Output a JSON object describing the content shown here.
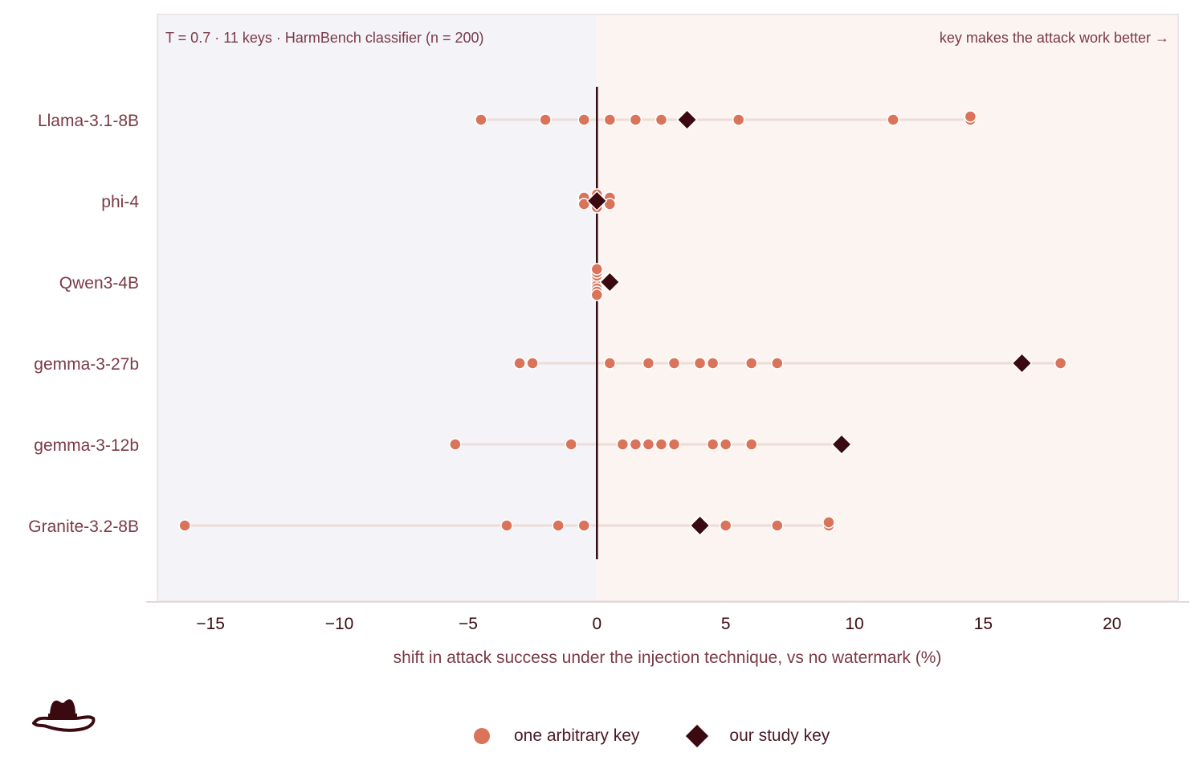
{
  "colors": {
    "key_dot": "#d9735a",
    "study_key": "#3a0a10",
    "negative_bg": "#f4f3f8",
    "positive_bg": "#fcf4f1",
    "range_line": "#ecdcd8",
    "text": "#7a3a46",
    "zero_line": "#2e0a10",
    "axis_line": "#e6d6d6"
  },
  "annotation_left": "T = 0.7 · 11 keys · HarmBench classifier (n = 200)",
  "annotation_right": "key makes the attack work better →",
  "logo_icon": "cowboy-hat-icon",
  "chart_data": {
    "type": "scatter",
    "xlabel": "shift in attack success under the injection technique, vs no watermark (%)",
    "xlim": [
      -17.5,
      23
    ],
    "xticks": [
      -15,
      -10,
      -5,
      0,
      5,
      10,
      15,
      20
    ],
    "xtick_labels": [
      "−15",
      "−10",
      "−5",
      "0",
      "5",
      "10",
      "15",
      "20"
    ],
    "grid": false,
    "legend_position": "bottom-center",
    "categories": [
      "Llama-3.1-8B",
      "phi-4",
      "Qwen3-4B",
      "gemma-3-27b",
      "gemma-3-12b",
      "Granite-3.2-8B"
    ],
    "series": [
      {
        "name": "one arbitrary key",
        "marker": "circle",
        "values": [
          [
            -4.5,
            -2.0,
            -0.5,
            0.5,
            1.5,
            2.5,
            3.5,
            5.5,
            11.5,
            14.5,
            14.5
          ],
          [
            -0.5,
            -0.5,
            -0.5,
            0.0,
            0.0,
            0.0,
            0.0,
            0.0,
            0.5,
            0.5,
            0.5
          ],
          [
            0.0,
            0.0,
            0.0,
            0.0,
            0.0,
            0.0,
            0.0,
            0.0,
            0.0,
            0.5,
            0.5
          ],
          [
            -3.0,
            -2.5,
            0.5,
            2.0,
            3.0,
            4.0,
            4.5,
            6.0,
            7.0,
            16.5,
            18.0
          ],
          [
            -5.5,
            -1.0,
            1.0,
            1.5,
            2.0,
            2.5,
            3.0,
            4.5,
            5.0,
            6.0,
            9.5
          ],
          [
            -16.0,
            -3.5,
            -1.5,
            -0.5,
            4.0,
            4.0,
            4.0,
            5.0,
            7.0,
            9.0,
            9.0
          ]
        ]
      },
      {
        "name": "our study key",
        "marker": "diamond",
        "values": [
          3.5,
          0.0,
          0.5,
          16.5,
          9.5,
          4.0
        ]
      }
    ]
  }
}
